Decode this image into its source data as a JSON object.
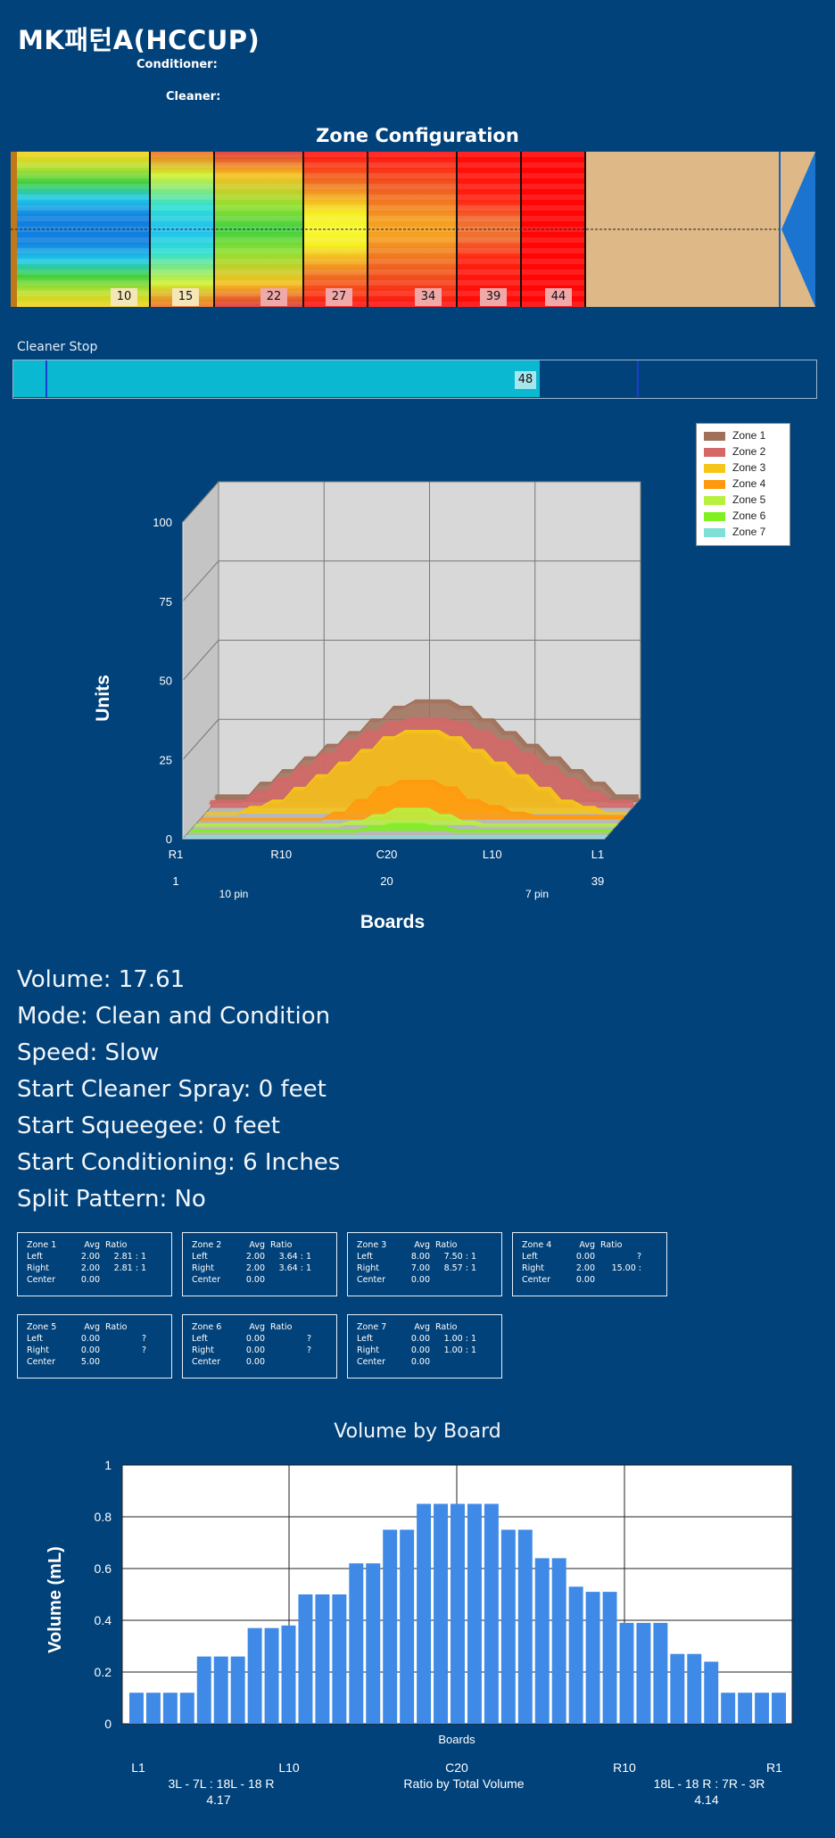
{
  "title": "MK패턴A(HCCUP)",
  "conditioner_label": "Conditioner:",
  "cleaner_label": "Cleaner:",
  "zone_config": {
    "title": "Zone Configuration",
    "zone_end_markers": [
      "10",
      "15",
      "22",
      "27",
      "34",
      "39",
      "44"
    ]
  },
  "cleaner_stop": {
    "label": "Cleaner Stop",
    "value": "48"
  },
  "info": {
    "volume": "Volume: 17.61",
    "mode": "Mode: Clean and Condition",
    "speed": "Speed: Slow",
    "start_cleaner_spray": "Start Cleaner Spray: 0 feet",
    "start_squeegee": "Start Squeegee: 0 feet",
    "start_conditioning": "Start Conditioning: 6 Inches",
    "split_pattern": "Split Pattern: No"
  },
  "zones": [
    {
      "name": "Zone 1",
      "left_avg": "2.00",
      "left_ratio": "2.81 : 1",
      "right_avg": "2.00",
      "right_ratio": "2.81 : 1",
      "center": "0.00"
    },
    {
      "name": "Zone 2",
      "left_avg": "2.00",
      "left_ratio": "3.64 : 1",
      "right_avg": "2.00",
      "right_ratio": "3.64 : 1",
      "center": "0.00"
    },
    {
      "name": "Zone 3",
      "left_avg": "8.00",
      "left_ratio": "7.50 : 1",
      "right_avg": "7.00",
      "right_ratio": "8.57 : 1",
      "center": "0.00"
    },
    {
      "name": "Zone 4",
      "left_avg": "0.00",
      "left_ratio": "?",
      "right_avg": "2.00",
      "right_ratio": "15.00 :",
      "center": "0.00"
    },
    {
      "name": "Zone 5",
      "left_avg": "0.00",
      "left_ratio": "?",
      "right_avg": "0.00",
      "right_ratio": "?",
      "center": "5.00"
    },
    {
      "name": "Zone 6",
      "left_avg": "0.00",
      "left_ratio": "?",
      "right_avg": "0.00",
      "right_ratio": "?",
      "center": "0.00"
    },
    {
      "name": "Zone 7",
      "left_avg": "0.00",
      "left_ratio": "1.00 : 1",
      "right_avg": "0.00",
      "right_ratio": "1.00 : 1",
      "center": "0.00"
    }
  ],
  "zone_headers": {
    "avg": "Avg",
    "ratio": "Ratio",
    "left": "Left",
    "right": "Right",
    "center": "Center"
  },
  "chart_data": [
    {
      "type": "area",
      "ylabel": "Units",
      "xlabel": "Boards",
      "ylim": [
        0,
        100
      ],
      "yticks": [
        "0",
        "25",
        "50",
        "75",
        "100"
      ],
      "x_tick_labels": [
        "R1",
        "R10",
        "C20",
        "L10",
        "L1"
      ],
      "x_sub_labels": [
        "1",
        "20",
        "39"
      ],
      "pin_labels": [
        "10 pin",
        "7 pin"
      ],
      "legend": [
        "Zone 1",
        "Zone 2",
        "Zone 3",
        "Zone 4",
        "Zone 5",
        "Zone 6",
        "Zone 7"
      ],
      "legend_position": "top-right",
      "colors": [
        "#a0705a",
        "#d46868",
        "#f5c518",
        "#ff9a0e",
        "#b8f040",
        "#80f020",
        "#80e0d8"
      ],
      "series": [
        {
          "name": "Zone 1",
          "values": [
            2,
            2,
            2,
            2,
            6,
            6,
            10,
            10,
            14,
            14,
            18,
            18,
            22,
            22,
            26,
            26,
            30,
            30,
            32,
            32,
            32,
            32,
            30,
            30,
            26,
            26,
            22,
            22,
            18,
            18,
            14,
            14,
            10,
            10,
            6,
            6,
            2,
            2,
            2
          ]
        },
        {
          "name": "Zone 2",
          "values": [
            2,
            2,
            2,
            2,
            5,
            5,
            9,
            9,
            13,
            13,
            17,
            17,
            21,
            21,
            24,
            24,
            27,
            27,
            28,
            28,
            28,
            28,
            27,
            27,
            24,
            24,
            21,
            21,
            17,
            17,
            13,
            13,
            9,
            9,
            5,
            5,
            2,
            2,
            2
          ]
        },
        {
          "name": "Zone 3",
          "values": [
            0,
            0,
            0,
            0,
            2,
            2,
            4,
            4,
            8,
            8,
            12,
            12,
            16,
            16,
            20,
            20,
            24,
            24,
            26,
            26,
            26,
            26,
            24,
            24,
            20,
            20,
            16,
            16,
            12,
            12,
            8,
            8,
            4,
            4,
            2,
            2,
            0,
            0,
            0
          ]
        },
        {
          "name": "Zone 4",
          "values": [
            0,
            0,
            0,
            0,
            0,
            0,
            0,
            0,
            0,
            0,
            0,
            0,
            2,
            2,
            6,
            6,
            10,
            10,
            12,
            12,
            12,
            12,
            10,
            10,
            6,
            6,
            4,
            4,
            2,
            2,
            1,
            1,
            1,
            1,
            1,
            1,
            1,
            1,
            1
          ]
        },
        {
          "name": "Zone 5",
          "values": [
            0,
            0,
            0,
            0,
            0,
            0,
            0,
            0,
            0,
            0,
            0,
            0,
            0,
            0,
            1,
            1,
            3,
            3,
            5,
            5,
            5,
            5,
            3,
            3,
            1,
            1,
            0,
            0,
            0,
            0,
            0,
            0,
            0,
            0,
            0,
            0,
            0,
            0,
            0
          ]
        },
        {
          "name": "Zone 6",
          "values": [
            0,
            0,
            0,
            0,
            0,
            0,
            0,
            0,
            0,
            0,
            0,
            0,
            0,
            0,
            0,
            0,
            1,
            1,
            2,
            2,
            2,
            2,
            1,
            1,
            0,
            0,
            0,
            0,
            0,
            0,
            0,
            0,
            0,
            0,
            0,
            0,
            0,
            0,
            0
          ]
        },
        {
          "name": "Zone 7",
          "values": [
            0,
            0,
            0,
            0,
            0,
            0,
            0,
            0,
            0,
            0,
            0,
            0,
            0,
            0,
            0,
            0,
            0,
            0,
            0,
            0,
            0,
            0,
            0,
            0,
            0,
            0,
            0,
            0,
            0,
            0,
            0,
            0,
            0,
            0,
            0,
            0,
            0,
            0,
            0
          ]
        }
      ]
    },
    {
      "type": "bar",
      "title": "Volume by Board",
      "xlabel": "Boards",
      "ylabel": "Volume (mL)",
      "ylim": [
        0,
        1
      ],
      "yticks": [
        "0",
        "0.2",
        "0.4",
        "0.6",
        "0.8",
        "1"
      ],
      "x_tick_labels": [
        "L1",
        "L10",
        "C20",
        "R10",
        "R1"
      ],
      "bar_color": "#3f8ae6",
      "values": [
        0.12,
        0.12,
        0.12,
        0.12,
        0.26,
        0.26,
        0.26,
        0.37,
        0.37,
        0.38,
        0.5,
        0.5,
        0.5,
        0.62,
        0.62,
        0.75,
        0.75,
        0.85,
        0.85,
        0.85,
        0.85,
        0.85,
        0.75,
        0.75,
        0.64,
        0.64,
        0.53,
        0.51,
        0.51,
        0.39,
        0.39,
        0.39,
        0.27,
        0.27,
        0.24,
        0.12,
        0.12,
        0.12,
        0.12
      ],
      "footer": {
        "left_ratio": "3L - 7L : 18L - 18 R",
        "left_value": "4.17",
        "center_label": "Ratio by Total Volume",
        "right_ratio": "18L - 18 R : 7R - 3R",
        "right_value": "4.14"
      }
    }
  ]
}
